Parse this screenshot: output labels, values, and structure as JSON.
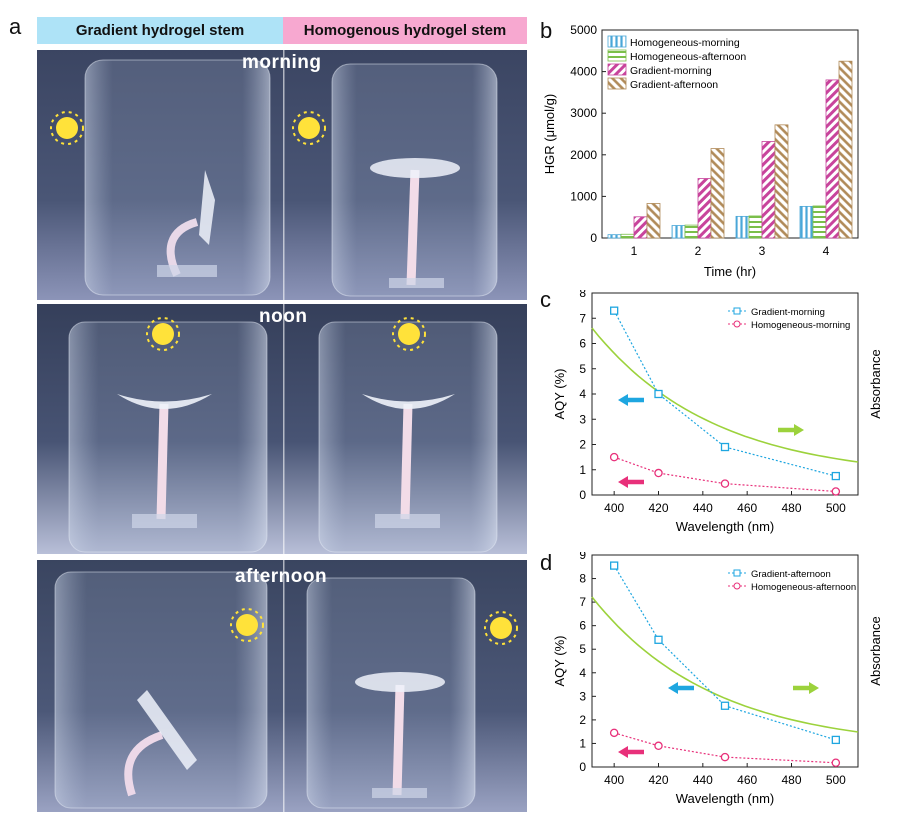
{
  "panel_a": {
    "label": "a",
    "header_left": "Gradient hydrogel stem",
    "header_right": "Homogenous hydrogel stem",
    "header_left_color": "#aee3f7",
    "header_right_color": "#f7a8d0",
    "row_captions": [
      "morning",
      "noon",
      "afternoon"
    ]
  },
  "chart_data": [
    {
      "panel": "b",
      "type": "bar",
      "categories": [
        "1",
        "2",
        "3",
        "4"
      ],
      "xlabel": "Time (hr)",
      "ylabel": "HGR (μmol/g)",
      "ylim": [
        0,
        5000
      ],
      "yticks": [
        0,
        1000,
        2000,
        3000,
        4000,
        5000
      ],
      "legend": "top-left",
      "series": [
        {
          "name": "Homogeneous-morning",
          "values": [
            80,
            300,
            520,
            760
          ],
          "color": "#4aa7d8",
          "pattern": "vertical"
        },
        {
          "name": "Homogeneous-afternoon",
          "values": [
            90,
            310,
            530,
            770
          ],
          "color": "#7bbf4a",
          "pattern": "horizontal"
        },
        {
          "name": "Gradient-morning",
          "values": [
            510,
            1430,
            2320,
            3800
          ],
          "color": "#c8449c",
          "pattern": "diag-left"
        },
        {
          "name": "Gradient-afternoon",
          "values": [
            830,
            2150,
            2720,
            4250
          ],
          "color": "#b08a58",
          "pattern": "diag-right"
        }
      ]
    },
    {
      "panel": "c",
      "type": "line",
      "xlabel": "Wavelength (nm)",
      "ylabel": "AQY (%)",
      "y2label": "Absorbance",
      "xlim": [
        390,
        510
      ],
      "xticks": [
        400,
        420,
        440,
        460,
        480,
        500
      ],
      "ylim": [
        0,
        8
      ],
      "yticks": [
        0,
        1,
        2,
        3,
        4,
        5,
        6,
        7,
        8
      ],
      "legend": "top-right",
      "series": [
        {
          "name": "Gradient-morning",
          "x": [
            400,
            420,
            450,
            500
          ],
          "y": [
            7.3,
            4.0,
            1.9,
            0.75
          ],
          "color": "#1ea6e0",
          "marker": "square"
        },
        {
          "name": "Homogeneous-morning",
          "x": [
            400,
            420,
            450,
            500
          ],
          "y": [
            1.5,
            0.87,
            0.45,
            0.14
          ],
          "color": "#e8307a",
          "marker": "circle"
        }
      ],
      "absorbance_color": "#9cd23c",
      "arrow_colors": {
        "blue": "#1ea6e0",
        "pink": "#e8307a",
        "green": "#9cd23c"
      }
    },
    {
      "panel": "d",
      "type": "line",
      "xlabel": "Wavelength (nm)",
      "ylabel": "AQY (%)",
      "y2label": "Absorbance",
      "xlim": [
        390,
        510
      ],
      "xticks": [
        400,
        420,
        440,
        460,
        480,
        500
      ],
      "ylim": [
        0,
        9
      ],
      "yticks": [
        0,
        1,
        2,
        3,
        4,
        5,
        6,
        7,
        8,
        9
      ],
      "legend": "top-right",
      "series": [
        {
          "name": "Gradient-afternoon",
          "x": [
            400,
            420,
            450,
            500
          ],
          "y": [
            8.55,
            5.4,
            2.6,
            1.15
          ],
          "color": "#1ea6e0",
          "marker": "square"
        },
        {
          "name": "Homogeneous-afternoon",
          "x": [
            400,
            420,
            450,
            500
          ],
          "y": [
            1.45,
            0.9,
            0.42,
            0.18
          ],
          "color": "#e8307a",
          "marker": "circle"
        }
      ],
      "absorbance_color": "#9cd23c",
      "arrow_colors": {
        "blue": "#1ea6e0",
        "pink": "#e8307a",
        "green": "#9cd23c"
      }
    }
  ]
}
